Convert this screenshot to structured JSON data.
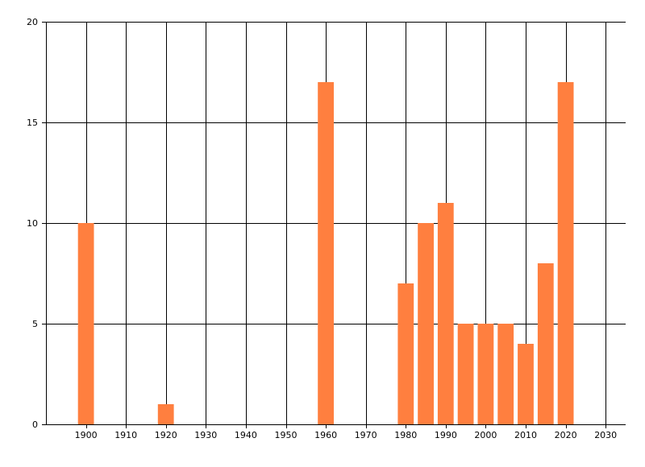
{
  "chart_data": {
    "type": "bar",
    "title": "",
    "xlabel": "",
    "ylabel": "",
    "x": [
      1900,
      1920,
      1960,
      1980,
      1985,
      1990,
      1995,
      2000,
      2005,
      2010,
      2015,
      2020
    ],
    "values": [
      10,
      1,
      17,
      7,
      10,
      11,
      5,
      5,
      5,
      4,
      8,
      17
    ],
    "xlim": [
      1890,
      2035
    ],
    "ylim": [
      0,
      20
    ],
    "x_ticks": [
      1900,
      1910,
      1920,
      1930,
      1940,
      1950,
      1960,
      1970,
      1980,
      1990,
      2000,
      2010,
      2020,
      2030
    ],
    "y_ticks": [
      0,
      5,
      10,
      15,
      20
    ],
    "bar_width": 4,
    "grid": true,
    "legend": "none",
    "colors": {
      "bar": "#ff7f3f",
      "grid": "#000000",
      "axis": "#000000"
    }
  }
}
